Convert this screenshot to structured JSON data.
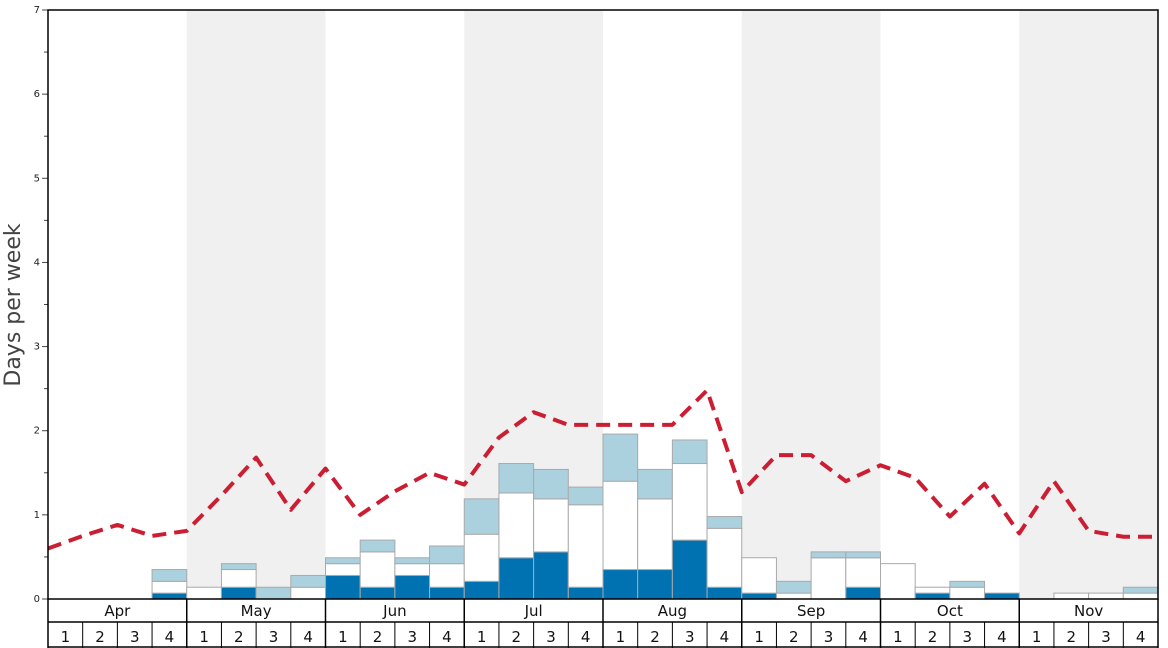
{
  "chart_data": {
    "type": "bar",
    "ylabel": "Days per week",
    "ylim": [
      0,
      7
    ],
    "ytick_labels": [
      "0",
      "1",
      "2",
      "3",
      "4",
      "5",
      "6",
      "7"
    ],
    "months": [
      "Apr",
      "May",
      "Jun",
      "Jul",
      "Aug",
      "Sep",
      "Oct",
      "Nov"
    ],
    "week_labels": [
      "1",
      "2",
      "3",
      "4"
    ],
    "stacked": true,
    "series": [
      {
        "color": "#0072b2",
        "values": [
          0,
          0,
          0,
          0.07,
          0,
          0.14,
          0,
          0,
          0.28,
          0.14,
          0.28,
          0.14,
          0.21,
          0.49,
          0.56,
          0.14,
          0.35,
          0.35,
          0.7,
          0.14,
          0.07,
          0,
          0,
          0.14,
          0,
          0.07,
          0,
          0.07,
          0,
          0,
          0,
          0
        ]
      },
      {
        "color": "#ffffff",
        "values": [
          0,
          0,
          0,
          0.14,
          0.14,
          0.21,
          0,
          0.14,
          0.14,
          0.42,
          0.14,
          0.28,
          0.56,
          0.77,
          0.63,
          0.98,
          1.05,
          0.84,
          0.91,
          0.7,
          0.42,
          0.07,
          0.49,
          0.35,
          0.42,
          0.07,
          0.14,
          0,
          0,
          0.07,
          0.07,
          0.07
        ]
      },
      {
        "color": "#abd1df",
        "values": [
          0,
          0,
          0,
          0.14,
          0,
          0.07,
          0.14,
          0.14,
          0.07,
          0.14,
          0.07,
          0.21,
          0.42,
          0.35,
          0.35,
          0.21,
          0.56,
          0.35,
          0.28,
          0.14,
          0,
          0.14,
          0.07,
          0.07,
          0,
          0,
          0.07,
          0,
          0,
          0,
          0,
          0.07
        ]
      }
    ],
    "line": {
      "color": "#cc1e32",
      "style": "dashed",
      "values": [
        0.6,
        0.75,
        0.88,
        0.75,
        0.81,
        1.23,
        1.68,
        1.06,
        1.55,
        1.0,
        1.28,
        1.5,
        1.36,
        1.92,
        2.22,
        2.07,
        2.07,
        2.07,
        2.07,
        2.48,
        1.27,
        1.71,
        1.71,
        1.4,
        1.59,
        1.44,
        0.98,
        1.37,
        0.78,
        1.4,
        0.81,
        0.74,
        0.74
      ]
    },
    "shaded_months": [
      "May",
      "Jul",
      "Sep",
      "Nov"
    ],
    "shade_color": "#f0f0f0",
    "grid": false
  }
}
